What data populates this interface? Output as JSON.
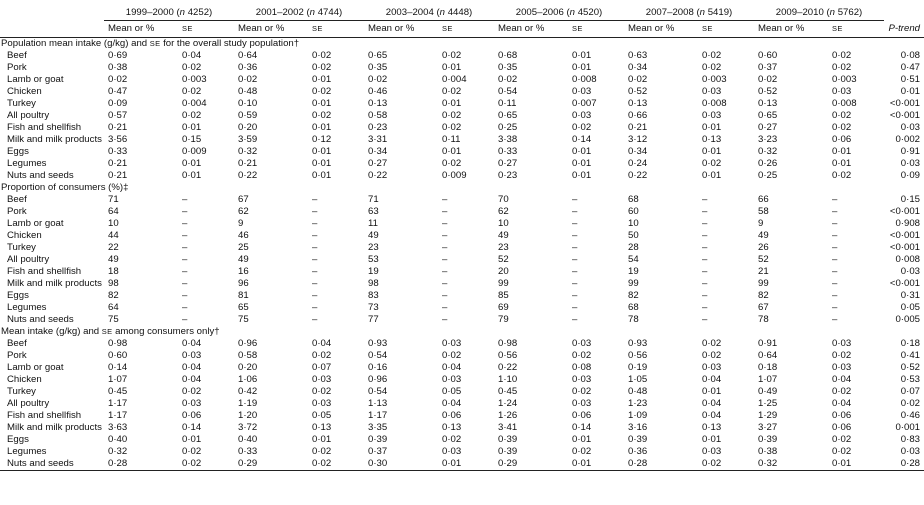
{
  "header": {
    "columns": [
      {
        "period": "1999–2000",
        "n_label": "n",
        "n_value": "4252"
      },
      {
        "period": "2001–2002",
        "n_label": "n",
        "n_value": "4744"
      },
      {
        "period": "2003–2004",
        "n_label": "n",
        "n_value": "4448"
      },
      {
        "period": "2005–2006",
        "n_label": "n",
        "n_value": "4520"
      },
      {
        "period": "2007–2008",
        "n_label": "n",
        "n_value": "5419"
      },
      {
        "period": "2009–2010",
        "n_label": "n",
        "n_value": "5762"
      }
    ],
    "mean_label": "Mean or %",
    "se_label": "SE",
    "p_trend_label": "P-trend"
  },
  "sections": [
    {
      "title_pre": "Population mean intake (g/kg) and ",
      "title_sc": "SE",
      "title_post": " for the overall study population†",
      "rows": [
        {
          "label": "Beef",
          "cells": [
            "0·69",
            "0·04",
            "0·64",
            "0·02",
            "0·65",
            "0·02",
            "0·68",
            "0·01",
            "0·63",
            "0·02",
            "0·60",
            "0·02"
          ],
          "p": "0·08"
        },
        {
          "label": "Pork",
          "cells": [
            "0·38",
            "0·02",
            "0·36",
            "0·02",
            "0·35",
            "0·01",
            "0·35",
            "0·01",
            "0·34",
            "0·02",
            "0·37",
            "0·02"
          ],
          "p": "0·47"
        },
        {
          "label": "Lamb or goat",
          "cells": [
            "0·02",
            "0·003",
            "0·02",
            "0·01",
            "0·02",
            "0·004",
            "0·02",
            "0·008",
            "0·02",
            "0·003",
            "0·02",
            "0·003"
          ],
          "p": "0·51"
        },
        {
          "label": "Chicken",
          "cells": [
            "0·47",
            "0·02",
            "0·48",
            "0·02",
            "0·46",
            "0·02",
            "0·54",
            "0·03",
            "0·52",
            "0·03",
            "0·52",
            "0·03"
          ],
          "p": "0·01"
        },
        {
          "label": "Turkey",
          "cells": [
            "0·09",
            "0·004",
            "0·10",
            "0·01",
            "0·13",
            "0·01",
            "0·11",
            "0·007",
            "0·13",
            "0·008",
            "0·13",
            "0·008"
          ],
          "p": "<0·001"
        },
        {
          "label": "All poultry",
          "cells": [
            "0·57",
            "0·02",
            "0·59",
            "0·02",
            "0·58",
            "0·02",
            "0·65",
            "0·03",
            "0·66",
            "0·03",
            "0·65",
            "0·02"
          ],
          "p": "<0·001"
        },
        {
          "label": "Fish and shellfish",
          "cells": [
            "0·21",
            "0·01",
            "0·20",
            "0·01",
            "0·23",
            "0·02",
            "0·25",
            "0·02",
            "0·21",
            "0·01",
            "0·27",
            "0·02"
          ],
          "p": "0·03"
        },
        {
          "label": "Milk and milk products",
          "cells": [
            "3·56",
            "0·15",
            "3·59",
            "0·12",
            "3·31",
            "0·11",
            "3·38",
            "0·14",
            "3·12",
            "0·13",
            "3·23",
            "0·06"
          ],
          "p": "0·002"
        },
        {
          "label": "Eggs",
          "cells": [
            "0·33",
            "0·009",
            "0·32",
            "0·01",
            "0·34",
            "0·01",
            "0·33",
            "0·01",
            "0·34",
            "0·01",
            "0·32",
            "0·01"
          ],
          "p": "0·91"
        },
        {
          "label": "Legumes",
          "cells": [
            "0·21",
            "0·01",
            "0·21",
            "0·01",
            "0·27",
            "0·02",
            "0·27",
            "0·01",
            "0·24",
            "0·02",
            "0·26",
            "0·01"
          ],
          "p": "0·03"
        },
        {
          "label": "Nuts and seeds",
          "cells": [
            "0·21",
            "0·01",
            "0·22",
            "0·01",
            "0·22",
            "0·009",
            "0·23",
            "0·01",
            "0·22",
            "0·01",
            "0·25",
            "0·02"
          ],
          "p": "0·09"
        }
      ]
    },
    {
      "title_pre": "Proportion of consumers (%)‡",
      "title_sc": "",
      "title_post": "",
      "rows": [
        {
          "label": "Beef",
          "cells": [
            "71",
            "–",
            "67",
            "–",
            "71",
            "–",
            "70",
            "–",
            "68",
            "–",
            "66",
            "–"
          ],
          "p": "0·15"
        },
        {
          "label": "Pork",
          "cells": [
            "64",
            "–",
            "62",
            "–",
            "63",
            "–",
            "62",
            "–",
            "60",
            "–",
            "58",
            "–"
          ],
          "p": "<0·001"
        },
        {
          "label": "Lamb or goat",
          "cells": [
            "10",
            "–",
            "9",
            "–",
            "11",
            "–",
            "10",
            "–",
            "10",
            "–",
            "9",
            "–"
          ],
          "p": "0·908"
        },
        {
          "label": "Chicken",
          "cells": [
            "44",
            "–",
            "46",
            "–",
            "49",
            "–",
            "49",
            "–",
            "50",
            "–",
            "49",
            "–"
          ],
          "p": "<0·001"
        },
        {
          "label": "Turkey",
          "cells": [
            "22",
            "–",
            "25",
            "–",
            "23",
            "–",
            "23",
            "–",
            "28",
            "–",
            "26",
            "–"
          ],
          "p": "<0·001"
        },
        {
          "label": "All poultry",
          "cells": [
            "49",
            "–",
            "49",
            "–",
            "53",
            "–",
            "52",
            "–",
            "54",
            "–",
            "52",
            "–"
          ],
          "p": "0·008"
        },
        {
          "label": "Fish and shellfish",
          "cells": [
            "18",
            "–",
            "16",
            "–",
            "19",
            "–",
            "20",
            "–",
            "19",
            "–",
            "21",
            "–"
          ],
          "p": "0·03"
        },
        {
          "label": "Milk and milk products",
          "cells": [
            "98",
            "–",
            "96",
            "–",
            "98",
            "–",
            "99",
            "–",
            "99",
            "–",
            "99",
            "–"
          ],
          "p": "<0·001"
        },
        {
          "label": "Eggs",
          "cells": [
            "82",
            "–",
            "81",
            "–",
            "83",
            "–",
            "85",
            "–",
            "82",
            "–",
            "82",
            "–"
          ],
          "p": "0·31"
        },
        {
          "label": "Legumes",
          "cells": [
            "64",
            "–",
            "65",
            "–",
            "73",
            "–",
            "69",
            "–",
            "68",
            "–",
            "67",
            "–"
          ],
          "p": "0·05"
        },
        {
          "label": "Nuts and seeds",
          "cells": [
            "75",
            "–",
            "75",
            "–",
            "77",
            "–",
            "79",
            "–",
            "78",
            "–",
            "78",
            "–"
          ],
          "p": "0·005"
        }
      ]
    },
    {
      "title_pre": "Mean intake (g/kg) and ",
      "title_sc": "SE",
      "title_post": " among consumers only†",
      "rows": [
        {
          "label": "Beef",
          "cells": [
            "0·98",
            "0·04",
            "0·96",
            "0·04",
            "0·93",
            "0·03",
            "0·98",
            "0·03",
            "0·93",
            "0·02",
            "0·91",
            "0·03"
          ],
          "p": "0·18"
        },
        {
          "label": "Pork",
          "cells": [
            "0·60",
            "0·03",
            "0·58",
            "0·02",
            "0·54",
            "0·02",
            "0·56",
            "0·02",
            "0·56",
            "0·02",
            "0·64",
            "0·02"
          ],
          "p": "0·41"
        },
        {
          "label": "Lamb or goat",
          "cells": [
            "0·14",
            "0·04",
            "0·20",
            "0·07",
            "0·16",
            "0·04",
            "0·22",
            "0·08",
            "0·19",
            "0·03",
            "0·18",
            "0·03"
          ],
          "p": "0·52"
        },
        {
          "label": "Chicken",
          "cells": [
            "1·07",
            "0·04",
            "1·06",
            "0·03",
            "0·96",
            "0·03",
            "1·10",
            "0·03",
            "1·05",
            "0·04",
            "1·07",
            "0·04"
          ],
          "p": "0·53"
        },
        {
          "label": "Turkey",
          "cells": [
            "0·45",
            "0·02",
            "0·42",
            "0·02",
            "0·54",
            "0·05",
            "0·45",
            "0·02",
            "0·48",
            "0·01",
            "0·49",
            "0·02"
          ],
          "p": "0·07"
        },
        {
          "label": "All poultry",
          "cells": [
            "1·17",
            "0·03",
            "1·19",
            "0·03",
            "1·13",
            "0·04",
            "1·24",
            "0·03",
            "1·23",
            "0·04",
            "1·25",
            "0·04"
          ],
          "p": "0·02"
        },
        {
          "label": "Fish and shellfish",
          "cells": [
            "1·17",
            "0·06",
            "1·20",
            "0·05",
            "1·17",
            "0·06",
            "1·26",
            "0·06",
            "1·09",
            "0·04",
            "1·29",
            "0·06"
          ],
          "p": "0·46"
        },
        {
          "label": "Milk and milk products",
          "cells": [
            "3·63",
            "0·14",
            "3·72",
            "0·13",
            "3·35",
            "0·13",
            "3·41",
            "0·14",
            "3·16",
            "0·13",
            "3·27",
            "0·06"
          ],
          "p": "0·001"
        },
        {
          "label": "Eggs",
          "cells": [
            "0·40",
            "0·01",
            "0·40",
            "0·01",
            "0·39",
            "0·02",
            "0·39",
            "0·01",
            "0·39",
            "0·01",
            "0·39",
            "0·02"
          ],
          "p": "0·83"
        },
        {
          "label": "Legumes",
          "cells": [
            "0·32",
            "0·02",
            "0·33",
            "0·02",
            "0·37",
            "0·03",
            "0·39",
            "0·02",
            "0·36",
            "0·03",
            "0·38",
            "0·02"
          ],
          "p": "0·03"
        },
        {
          "label": "Nuts and seeds",
          "cells": [
            "0·28",
            "0·02",
            "0·29",
            "0·02",
            "0·30",
            "0·01",
            "0·29",
            "0·01",
            "0·28",
            "0·02",
            "0·32",
            "0·01"
          ],
          "p": "0·28"
        }
      ]
    }
  ]
}
